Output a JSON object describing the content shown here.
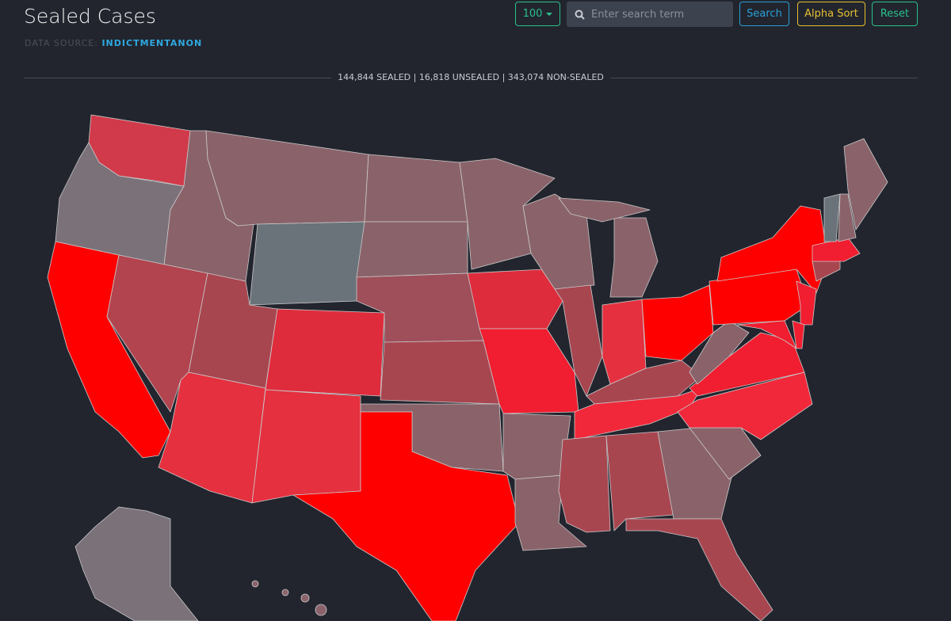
{
  "header": {
    "title": "Sealed Cases",
    "source_label": "DATA SOURCE:",
    "source_link": "INDICTMENTANON"
  },
  "controls": {
    "page_size": "100",
    "search_placeholder": "Enter search term",
    "buttons": [
      "Search",
      "Alpha Sort",
      "Reset"
    ]
  },
  "summary": "144,844 SEALED | 16,818 UNSEALED | 343,074 NON-SEALED"
}
